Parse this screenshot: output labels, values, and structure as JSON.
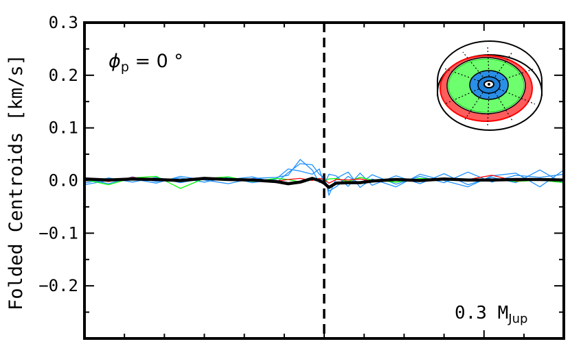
{
  "chart_data": {
    "type": "line",
    "ylabel": "Folded Centroids [km/s]",
    "ylim": [
      -0.3,
      0.3
    ],
    "yticks": [
      -0.2,
      -0.1,
      0.0,
      0.1,
      0.2,
      0.3
    ],
    "ytick_labels": [
      "−0.2",
      "−0.1",
      "0.0",
      "0.1",
      "0.2",
      "0.3"
    ],
    "x": [
      -1.0,
      -0.9,
      -0.8,
      -0.7,
      -0.6,
      -0.5,
      -0.4,
      -0.3,
      -0.2,
      -0.15,
      -0.1,
      -0.05,
      -0.02,
      0.0,
      0.02,
      0.05,
      0.1,
      0.15,
      0.2,
      0.3,
      0.4,
      0.5,
      0.6,
      0.7,
      0.8,
      0.9,
      1.0
    ],
    "xlim": [
      -1.0,
      1.0
    ],
    "vline_x": 0.0,
    "annotation_phase": {
      "symbol": "ϕ",
      "subscript": "p",
      "rest": " = 0 °"
    },
    "annotation_mass": {
      "value": "0.3 M",
      "subscript": "Jup"
    },
    "series": [
      {
        "color": "#000000",
        "values": [
          0.003,
          0.001,
          0.003,
          0.002,
          0.0,
          0.004,
          0.002,
          0.001,
          -0.002,
          -0.006,
          -0.003,
          0.004,
          0.0,
          -0.005,
          -0.013,
          -0.005,
          -0.004,
          -0.004,
          -0.001,
          0.002,
          0.0,
          0.003,
          0.001,
          0.001,
          0.002,
          0.002,
          0.001
        ]
      },
      {
        "color": "#1e90ff",
        "values": [
          -0.005,
          0.005,
          -0.003,
          0.006,
          -0.004,
          0.004,
          0.002,
          0.007,
          -0.004,
          0.015,
          0.032,
          0.03,
          0.012,
          0.005,
          -0.02,
          -0.012,
          0.008,
          -0.006,
          0.011,
          -0.007,
          0.008,
          -0.004,
          0.016,
          -0.003,
          0.01,
          0.006,
          0.012
        ]
      },
      {
        "color": "#1e90ff",
        "values": [
          0.004,
          -0.006,
          0.007,
          -0.002,
          0.005,
          -0.003,
          0.006,
          -0.004,
          0.003,
          0.022,
          0.018,
          0.012,
          0.022,
          -0.008,
          0.012,
          0.009,
          -0.011,
          0.014,
          -0.009,
          0.009,
          -0.006,
          0.013,
          -0.008,
          0.006,
          -0.004,
          0.02,
          -0.006
        ]
      },
      {
        "color": "#1e90ff",
        "values": [
          -0.008,
          0.0,
          0.003,
          -0.005,
          0.008,
          0.001,
          -0.006,
          0.004,
          0.006,
          0.01,
          0.04,
          0.02,
          -0.004,
          0.012,
          -0.028,
          0.004,
          0.016,
          -0.013,
          0.003,
          -0.012,
          0.012,
          0.0,
          -0.012,
          0.009,
          0.014,
          -0.012,
          0.02
        ]
      },
      {
        "color": "#00ff00",
        "values": [
          0.002,
          -0.008,
          0.005,
          0.008,
          -0.015,
          0.004,
          0.007,
          -0.002,
          0.004,
          0.002,
          -0.003,
          0.003,
          0.001,
          -0.002,
          0.003,
          0.004,
          -0.002,
          0.006,
          0.001,
          -0.003,
          0.004,
          0.002,
          -0.001,
          0.003,
          -0.002,
          0.001,
          -0.004
        ]
      },
      {
        "color": "#ff0000",
        "values": [
          0.005,
          -0.002,
          0.006,
          0.001,
          -0.002,
          0.003,
          0.001,
          0.003,
          -0.001,
          0.002,
          0.004,
          0.0,
          0.004,
          0.002,
          -0.005,
          0.002,
          0.001,
          0.003,
          -0.001,
          0.002,
          0.001,
          0.004,
          0.002,
          0.01,
          -0.001,
          0.002,
          0.003
        ]
      }
    ]
  }
}
